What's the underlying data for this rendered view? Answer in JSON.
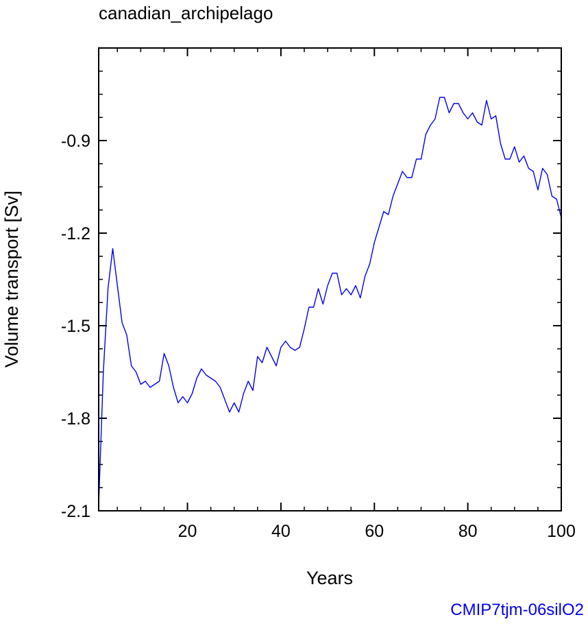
{
  "chart_data": {
    "type": "line",
    "title": "canadian_archipelago",
    "xlabel": "Years",
    "ylabel": "Volume transport [Sv]",
    "footer": "CMIP7tjm-06silO2",
    "xlim": [
      1,
      100
    ],
    "ylim": [
      -2.1,
      -0.6
    ],
    "xticks": [
      20,
      40,
      60,
      80,
      100
    ],
    "yticks": [
      -2.1,
      -1.8,
      -1.5,
      -1.2,
      -0.9
    ],
    "xtick_labels": [
      "20",
      "40",
      "60",
      "80",
      "100"
    ],
    "ytick_labels": [
      "-2.1",
      "-1.8",
      "-1.5",
      "-1.2",
      "-0.9"
    ],
    "grid": false,
    "colors": {
      "line": "#0000ee",
      "footer": "#0000ee",
      "axes": "#000000"
    },
    "series": [
      {
        "x": [
          1,
          2,
          3,
          4,
          5,
          6,
          7,
          8,
          9,
          10,
          11,
          12,
          13,
          14,
          15,
          16,
          17,
          18,
          19,
          20,
          21,
          22,
          23,
          24,
          25,
          26,
          27,
          28,
          29,
          30,
          31,
          32,
          33,
          34,
          35,
          36,
          37,
          38,
          39,
          40,
          41,
          42,
          43,
          44,
          45,
          46,
          47,
          48,
          49,
          50,
          51,
          52,
          53,
          54,
          55,
          56,
          57,
          58,
          59,
          60,
          61,
          62,
          63,
          64,
          65,
          66,
          67,
          68,
          69,
          70,
          71,
          72,
          73,
          74,
          75,
          76,
          77,
          78,
          79,
          80,
          81,
          82,
          83,
          84,
          85,
          86,
          87,
          88,
          89,
          90,
          91,
          92,
          93,
          94,
          95,
          96,
          97,
          98,
          99,
          100
        ],
        "y": [
          -2.08,
          -1.65,
          -1.38,
          -1.25,
          -1.37,
          -1.49,
          -1.53,
          -1.63,
          -1.65,
          -1.69,
          -1.68,
          -1.7,
          -1.69,
          -1.68,
          -1.59,
          -1.63,
          -1.7,
          -1.75,
          -1.73,
          -1.75,
          -1.72,
          -1.67,
          -1.64,
          -1.66,
          -1.67,
          -1.68,
          -1.7,
          -1.74,
          -1.78,
          -1.75,
          -1.78,
          -1.72,
          -1.68,
          -1.71,
          -1.6,
          -1.62,
          -1.57,
          -1.6,
          -1.63,
          -1.57,
          -1.55,
          -1.57,
          -1.58,
          -1.57,
          -1.51,
          -1.44,
          -1.44,
          -1.38,
          -1.43,
          -1.37,
          -1.33,
          -1.33,
          -1.4,
          -1.38,
          -1.4,
          -1.37,
          -1.41,
          -1.34,
          -1.3,
          -1.23,
          -1.18,
          -1.13,
          -1.14,
          -1.08,
          -1.04,
          -1.0,
          -1.02,
          -1.02,
          -0.96,
          -0.96,
          -0.88,
          -0.85,
          -0.83,
          -0.76,
          -0.76,
          -0.81,
          -0.78,
          -0.78,
          -0.81,
          -0.83,
          -0.81,
          -0.84,
          -0.85,
          -0.77,
          -0.83,
          -0.82,
          -0.91,
          -0.96,
          -0.96,
          -0.92,
          -0.97,
          -0.95,
          -0.99,
          -1.0,
          -1.06,
          -0.99,
          -1.01,
          -1.08,
          -1.09,
          -1.15
        ]
      }
    ]
  }
}
